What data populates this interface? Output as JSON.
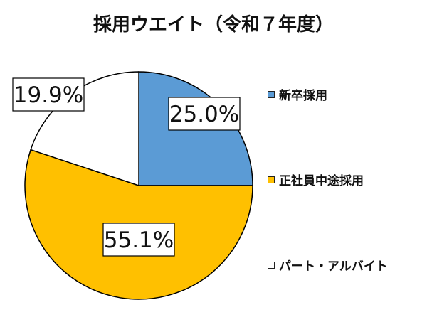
{
  "chart_data": {
    "type": "pie",
    "title": "採用ウエイト（令和７年度）",
    "slices": [
      {
        "label": "新卒採用",
        "value": 25.0,
        "value_label": "25.0%",
        "color": "#5b9bd5"
      },
      {
        "label": "正社員中途採用",
        "value": 55.1,
        "value_label": "55.1%",
        "color": "#ffc000"
      },
      {
        "label": "パート・アルバイト",
        "value": 19.9,
        "value_label": "19.9%",
        "color": "#ffffff"
      }
    ],
    "start_angle": "12 o'clock",
    "direction": "clockwise",
    "legend_position": "right"
  }
}
